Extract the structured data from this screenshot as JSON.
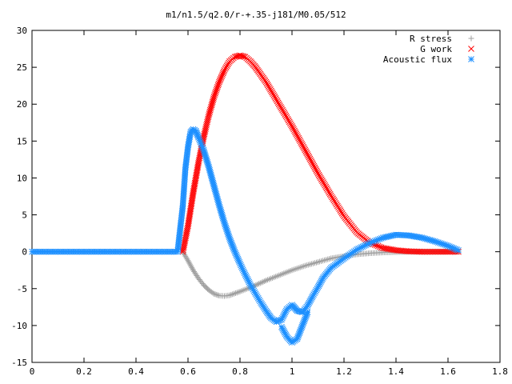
{
  "chart_data": {
    "type": "scatter",
    "title": "m1/n1.5/q2.0/r-+.35-j181/M0.05/512",
    "xlabel": "",
    "ylabel": "",
    "xlim": [
      0,
      1.8
    ],
    "ylim": [
      -15,
      30
    ],
    "xticks": [
      "0",
      "0.2",
      "0.4",
      "0.6",
      "0.8",
      "1",
      "1.2",
      "1.4",
      "1.6",
      "1.8"
    ],
    "yticks": [
      "-15",
      "-10",
      "-5",
      "0",
      "5",
      "10",
      "15",
      "20",
      "25",
      "30"
    ],
    "grid": false,
    "legend_position": "top-right",
    "series": [
      {
        "name": "R stress",
        "marker": "plus",
        "color": "#a0a0a0",
        "points": [
          [
            0.58,
            0.0
          ],
          [
            0.6,
            -1.2
          ],
          [
            0.62,
            -2.5
          ],
          [
            0.64,
            -3.6
          ],
          [
            0.66,
            -4.5
          ],
          [
            0.68,
            -5.2
          ],
          [
            0.7,
            -5.7
          ],
          [
            0.72,
            -5.95
          ],
          [
            0.74,
            -6.0
          ],
          [
            0.76,
            -5.9
          ],
          [
            0.8,
            -5.4
          ],
          [
            0.85,
            -4.7
          ],
          [
            0.9,
            -3.9
          ],
          [
            0.95,
            -3.2
          ],
          [
            1.0,
            -2.5
          ],
          [
            1.05,
            -1.9
          ],
          [
            1.1,
            -1.4
          ],
          [
            1.15,
            -0.9
          ],
          [
            1.2,
            -0.6
          ],
          [
            1.25,
            -0.35
          ],
          [
            1.3,
            -0.2
          ],
          [
            1.35,
            -0.1
          ],
          [
            1.4,
            -0.05
          ],
          [
            1.45,
            0.0
          ],
          [
            1.5,
            0.0
          ],
          [
            1.55,
            0.0
          ],
          [
            1.6,
            0.0
          ],
          [
            1.64,
            0.0
          ]
        ]
      },
      {
        "name": "G work",
        "marker": "cross",
        "color": "#ff0000",
        "points": [
          [
            0.58,
            0.0
          ],
          [
            0.6,
            3.5
          ],
          [
            0.62,
            8.0
          ],
          [
            0.64,
            12.0
          ],
          [
            0.66,
            15.5
          ],
          [
            0.68,
            18.5
          ],
          [
            0.7,
            21.0
          ],
          [
            0.72,
            23.0
          ],
          [
            0.74,
            24.6
          ],
          [
            0.76,
            25.8
          ],
          [
            0.78,
            26.4
          ],
          [
            0.8,
            26.6
          ],
          [
            0.82,
            26.4
          ],
          [
            0.84,
            25.8
          ],
          [
            0.86,
            25.0
          ],
          [
            0.9,
            23.0
          ],
          [
            0.95,
            20.0
          ],
          [
            1.0,
            17.0
          ],
          [
            1.05,
            13.8
          ],
          [
            1.1,
            10.6
          ],
          [
            1.15,
            7.6
          ],
          [
            1.2,
            4.8
          ],
          [
            1.25,
            2.6
          ],
          [
            1.3,
            1.2
          ],
          [
            1.35,
            0.5
          ],
          [
            1.4,
            0.2
          ],
          [
            1.45,
            0.05
          ],
          [
            1.5,
            0.0
          ],
          [
            1.55,
            0.0
          ],
          [
            1.6,
            0.0
          ],
          [
            1.64,
            0.0
          ]
        ]
      },
      {
        "name": "Acoustic flux",
        "marker": "star",
        "color": "#1e90ff",
        "points": [
          [
            0.0,
            0.0
          ],
          [
            0.1,
            0.0
          ],
          [
            0.2,
            0.0
          ],
          [
            0.3,
            0.0
          ],
          [
            0.4,
            0.0
          ],
          [
            0.5,
            0.0
          ],
          [
            0.56,
            0.0
          ],
          [
            0.58,
            6.2
          ],
          [
            0.59,
            11.3
          ],
          [
            0.6,
            14.2
          ],
          [
            0.61,
            16.2
          ],
          [
            0.62,
            16.6
          ],
          [
            0.63,
            16.4
          ],
          [
            0.64,
            15.5
          ],
          [
            0.66,
            13.8
          ],
          [
            0.68,
            11.5
          ],
          [
            0.7,
            8.9
          ],
          [
            0.72,
            6.3
          ],
          [
            0.74,
            3.9
          ],
          [
            0.76,
            1.8
          ],
          [
            0.78,
            0.0
          ],
          [
            0.8,
            -1.6
          ],
          [
            0.82,
            -3.1
          ],
          [
            0.84,
            -4.5
          ],
          [
            0.86,
            -5.7
          ],
          [
            0.88,
            -6.9
          ],
          [
            0.9,
            -8.0
          ],
          [
            0.92,
            -9.0
          ],
          [
            0.94,
            -9.5
          ],
          [
            0.96,
            -9.2
          ],
          [
            0.98,
            -7.8
          ],
          [
            1.0,
            -7.2
          ],
          [
            1.01,
            -7.6
          ],
          [
            1.02,
            -8.0
          ],
          [
            1.04,
            -8.2
          ],
          [
            1.06,
            -7.3
          ],
          [
            1.08,
            -6.0
          ],
          [
            1.1,
            -4.8
          ],
          [
            1.12,
            -3.5
          ],
          [
            1.15,
            -2.2
          ],
          [
            1.2,
            -0.9
          ],
          [
            1.25,
            0.3
          ],
          [
            1.3,
            1.2
          ],
          [
            1.35,
            1.9
          ],
          [
            1.4,
            2.3
          ],
          [
            1.45,
            2.2
          ],
          [
            1.5,
            1.9
          ],
          [
            1.55,
            1.4
          ],
          [
            1.6,
            0.8
          ],
          [
            1.64,
            0.2
          ]
        ],
        "lower_branch": [
          [
            0.96,
            -10.2
          ],
          [
            0.98,
            -11.5
          ],
          [
            1.0,
            -12.3
          ],
          [
            1.02,
            -11.8
          ],
          [
            1.04,
            -10.0
          ],
          [
            1.06,
            -8.2
          ]
        ]
      }
    ]
  }
}
